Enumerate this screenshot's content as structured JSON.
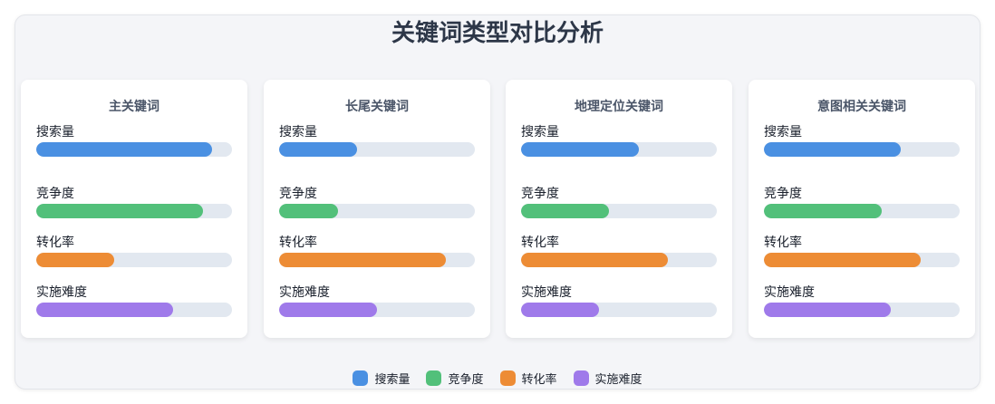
{
  "chart_data": {
    "type": "bar",
    "orientation": "horizontal",
    "title": "关键词类型对比分析",
    "xlim": [
      0,
      100
    ],
    "metrics": [
      "搜索量",
      "竞争度",
      "转化率",
      "实施难度"
    ],
    "colors": [
      "#4a90e2",
      "#52c07a",
      "#ed8c35",
      "#9f7aea"
    ],
    "legend_placement": "bottom",
    "panels": [
      {
        "title": "主关键词",
        "values": [
          90,
          85,
          40,
          70
        ]
      },
      {
        "title": "长尾关键词",
        "values": [
          40,
          30,
          85,
          50
        ]
      },
      {
        "title": "地理定位关键词",
        "values": [
          60,
          45,
          75,
          40
        ]
      },
      {
        "title": "意图相关关键词",
        "values": [
          70,
          60,
          80,
          65
        ]
      }
    ]
  }
}
